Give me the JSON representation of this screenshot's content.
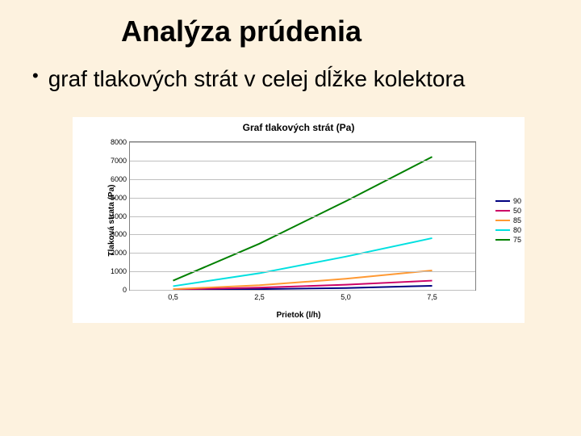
{
  "slide": {
    "title": "Analýza prúdenia",
    "bullet": "graf tlakových strát v celej dĺžke kolektora",
    "background_color": "#fdf2df"
  },
  "chart": {
    "type": "line",
    "title": "Graf tlakových strát (Pa)",
    "xlabel": "Prietok (l/h)",
    "ylabel": "Tlaková strata (Pa)",
    "background_color": "#ffffff",
    "grid_color": "#c0c0c0",
    "border_color": "#808080",
    "title_fontsize": 12,
    "label_fontsize": 10,
    "tick_fontsize": 9,
    "x_categories": [
      "0,5",
      "2,5",
      "5,0",
      "7,5"
    ],
    "ylim": [
      0,
      8000
    ],
    "yticks": [
      0,
      1000,
      2000,
      3000,
      4000,
      5000,
      6000,
      7000,
      8000
    ],
    "series": [
      {
        "name": "90",
        "color": "#000080",
        "values": [
          5,
          40,
          100,
          220
        ],
        "width": 2
      },
      {
        "name": "50",
        "color": "#cc0066",
        "values": [
          20,
          120,
          280,
          500
        ],
        "width": 2
      },
      {
        "name": "85",
        "color": "#ff9933",
        "values": [
          40,
          250,
          600,
          1050
        ],
        "width": 2
      },
      {
        "name": "80",
        "color": "#00e0e0",
        "values": [
          200,
          900,
          1800,
          2800
        ],
        "width": 2
      },
      {
        "name": "75",
        "color": "#008000",
        "values": [
          500,
          2500,
          4800,
          7200
        ],
        "width": 2
      }
    ],
    "legend_fontsize": 9
  }
}
